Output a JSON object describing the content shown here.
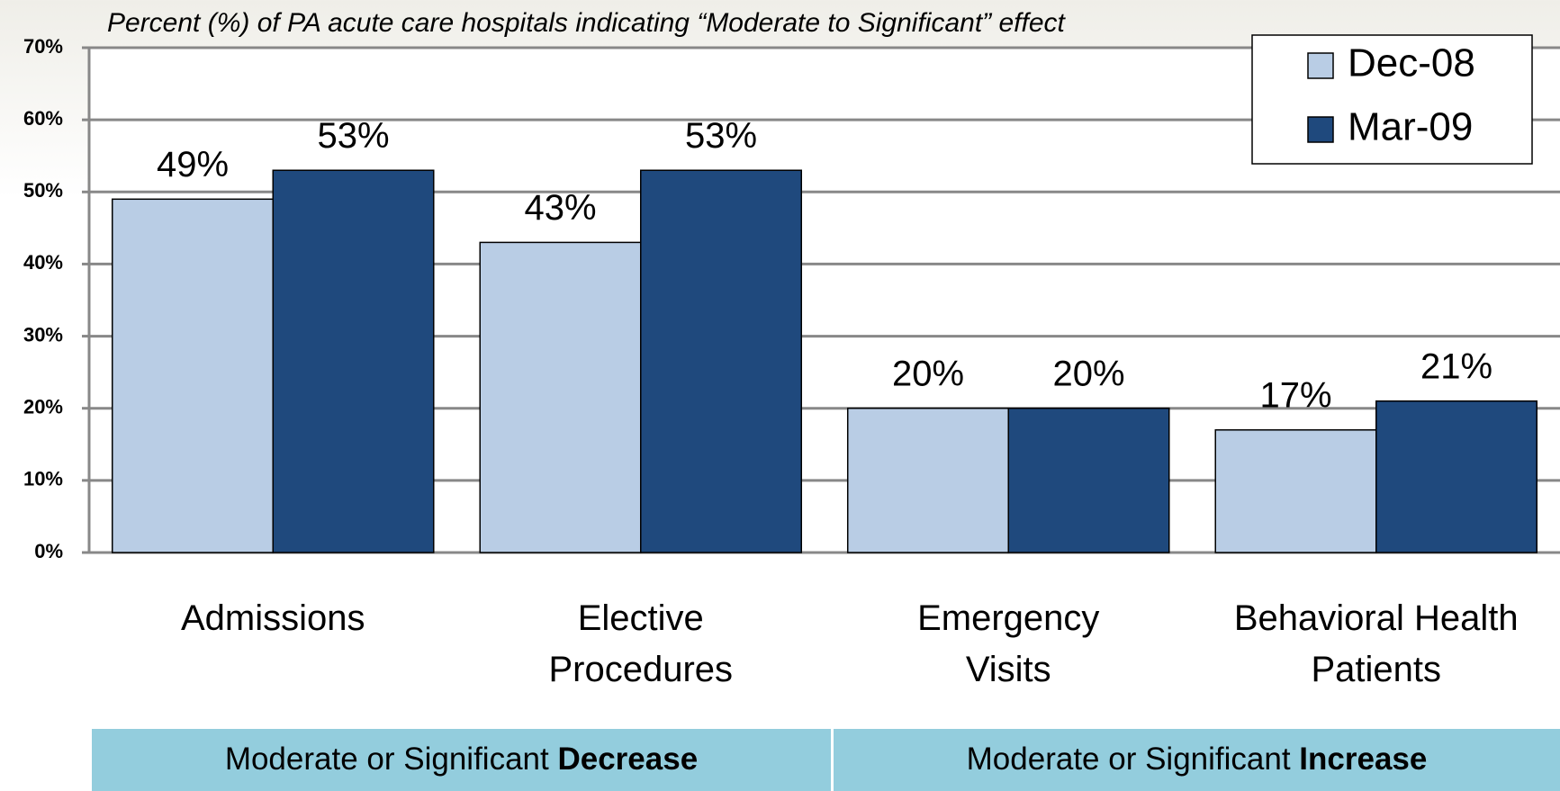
{
  "chart_data": {
    "type": "bar",
    "title": "Percent (%) of PA acute care hospitals indicating “Moderate to Significant” effect",
    "categories": [
      "Admissions",
      "Elective\nProcedures",
      "Emergency\nVisits",
      "Behavioral Health\nPatients"
    ],
    "series": [
      {
        "name": "Dec-08",
        "color": "#b9cde5",
        "values": [
          49,
          43,
          20,
          17
        ],
        "value_labels": [
          "49%",
          "43%",
          "20%",
          "17%"
        ]
      },
      {
        "name": "Mar-09",
        "color": "#1f497d",
        "values": [
          53,
          53,
          20,
          21
        ],
        "value_labels": [
          "53%",
          "53%",
          "20%",
          "21%"
        ]
      }
    ],
    "ylim": [
      0,
      70
    ],
    "yticks": [
      {
        "value": 0,
        "label": "0%"
      },
      {
        "value": 10,
        "label": "10%"
      },
      {
        "value": 20,
        "label": "20%"
      },
      {
        "value": 30,
        "label": "30%"
      },
      {
        "value": 40,
        "label": "40%"
      },
      {
        "value": 50,
        "label": "50%"
      },
      {
        "value": 60,
        "label": "60%"
      },
      {
        "value": 70,
        "label": "70%"
      }
    ],
    "grid": true,
    "legend": "top-right",
    "groups": [
      {
        "text": "Moderate or Significant",
        "emphasis": "Decrease",
        "color": "#93cddd"
      },
      {
        "text": "Moderate or Significant",
        "emphasis": "Increase",
        "color": "#93cddd"
      }
    ]
  }
}
